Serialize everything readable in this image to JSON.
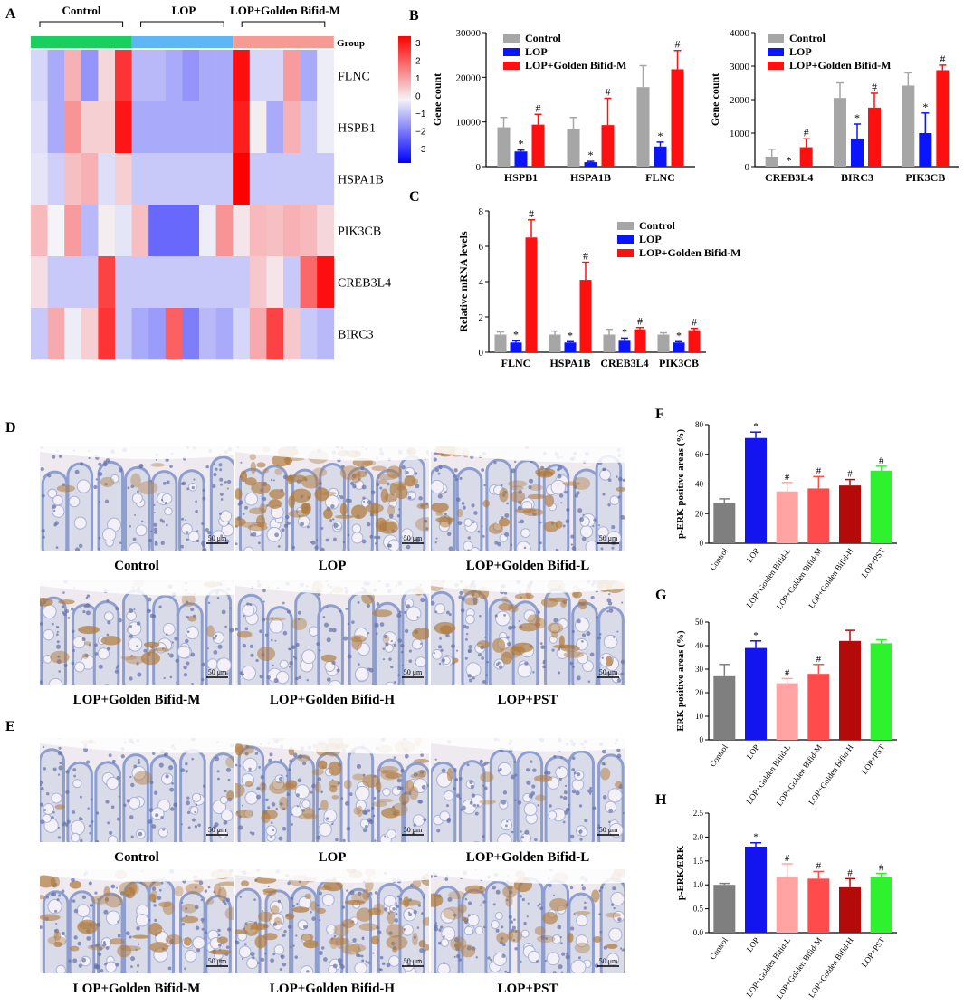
{
  "palette": {
    "control": "#a6a6a6",
    "lop": "#0a14ff",
    "golden_m": "#ff1010",
    "group_control": "#19cf5d",
    "group_lop": "#5fb6f5",
    "group_golden": "#f59b93",
    "f_bars": [
      "#7f7f7f",
      "#1414f0",
      "#ffa3a3",
      "#ff4b4b",
      "#b40a0a",
      "#2ef22e"
    ],
    "stain_blue": "#8e9ecf",
    "stain_brown": "#b07a3c"
  },
  "panels": {
    "A": "A",
    "B": "B",
    "C": "C",
    "D": "D",
    "E": "E",
    "F": "F",
    "G": "G",
    "H": "H"
  },
  "heatmap": {
    "group_headers": [
      "Control",
      "LOP",
      "LOP+Golden Bifid-M"
    ],
    "group_label": "Group",
    "rows": [
      "FLNC",
      "HSPB1",
      "HSPA1B",
      "PIK3CB",
      "CREB3L4",
      "BIRC3"
    ],
    "columns_per_group": 6,
    "scale_ticks": [
      "3",
      "2",
      "1",
      "0",
      "−1",
      "−2",
      "−3"
    ],
    "scale_range": [
      -3,
      3
    ],
    "values": [
      [
        -0.4,
        -1.0,
        0.9,
        -1.3,
        0.4,
        2.6,
        -0.8,
        -0.8,
        -1.0,
        -1.3,
        -1.0,
        -1.0,
        3.1,
        -0.4,
        -0.4,
        1.2,
        -1.0,
        -0.1
      ],
      [
        -0.3,
        -1.0,
        1.3,
        0.5,
        0.5,
        3.0,
        -1.0,
        -1.0,
        -1.0,
        -1.0,
        -1.0,
        -1.0,
        2.9,
        0.1,
        -1.0,
        0.9,
        -0.6,
        -0.1
      ],
      [
        -0.2,
        -0.5,
        0.7,
        0.9,
        -0.3,
        0.5,
        -0.6,
        -0.6,
        -0.6,
        -0.6,
        -0.6,
        -0.6,
        3.3,
        -0.6,
        -0.6,
        -0.6,
        -0.6,
        -0.6
      ],
      [
        0.8,
        0.0,
        1.2,
        -0.8,
        0.1,
        -0.2,
        0.7,
        -1.9,
        -1.9,
        -1.9,
        -0.1,
        1.3,
        0.2,
        0.8,
        0.7,
        0.9,
        0.8,
        0.4
      ],
      [
        0.3,
        -0.6,
        -0.6,
        -0.6,
        2.4,
        -0.6,
        -0.6,
        -0.6,
        -0.6,
        -0.6,
        -0.6,
        -0.6,
        -0.6,
        0.6,
        0.2,
        -0.6,
        1.9,
        3.1
      ],
      [
        -0.6,
        1.0,
        -0.1,
        0.5,
        2.6,
        -0.6,
        -1.0,
        -1.2,
        2.0,
        -1.6,
        -0.8,
        -1.0,
        -0.4,
        1.0,
        2.4,
        0.6,
        -0.6,
        -0.8
      ]
    ]
  },
  "photos": {
    "scale_bar": "50 μm",
    "D_labels": [
      "Control",
      "LOP",
      "LOP+Golden Bifid-L",
      "LOP+Golden Bifid-M",
      "LOP+Golden Bifid-H",
      "LOP+PST"
    ],
    "D_brown_intensity": [
      0.05,
      0.75,
      0.3,
      0.2,
      0.15,
      0.45
    ],
    "E_labels": [
      "Control",
      "LOP",
      "LOP+Golden Bifid-L",
      "LOP+Golden Bifid-M",
      "LOP+Golden Bifid-H",
      "LOP+PST"
    ],
    "E_brown_intensity": [
      0.05,
      0.6,
      0.08,
      0.5,
      0.6,
      0.35
    ]
  },
  "chart_data": [
    {
      "panel": "B-left",
      "type": "bar",
      "ylabel": "Gene count",
      "categories": [
        "HSPB1",
        "HSPA1B",
        "FLNC"
      ],
      "ylim": [
        0,
        30000
      ],
      "yticks": [
        0,
        10000,
        20000,
        30000
      ],
      "legend": "top-left",
      "series": [
        {
          "name": "Control",
          "values": [
            8800,
            8500,
            17800
          ],
          "errors": [
            2200,
            2500,
            4800
          ],
          "marks": [
            "",
            "",
            ""
          ]
        },
        {
          "name": "LOP",
          "values": [
            3400,
            1000,
            4500
          ],
          "errors": [
            300,
            200,
            1000
          ],
          "marks": [
            "*",
            "*",
            "*"
          ]
        },
        {
          "name": "LOP+Golden Bifid-M",
          "values": [
            9400,
            9300,
            21800
          ],
          "errors": [
            2300,
            6000,
            4200
          ],
          "marks": [
            "#",
            "#",
            "#"
          ]
        }
      ]
    },
    {
      "panel": "B-right",
      "type": "bar",
      "ylabel": "Gene count",
      "categories": [
        "CREB3L4",
        "BIRC3",
        "PIK3CB"
      ],
      "ylim": [
        0,
        4000
      ],
      "yticks": [
        0,
        1000,
        2000,
        3000,
        4000
      ],
      "legend": "top-left",
      "series": [
        {
          "name": "Control",
          "values": [
            300,
            2050,
            2420
          ],
          "errors": [
            220,
            450,
            380
          ],
          "marks": [
            "",
            "",
            ""
          ]
        },
        {
          "name": "LOP",
          "values": [
            0,
            840,
            1000
          ],
          "errors": [
            0,
            430,
            600
          ],
          "marks": [
            "*",
            "*",
            "*"
          ]
        },
        {
          "name": "LOP+Golden Bifid-M",
          "values": [
            580,
            1760,
            2880
          ],
          "errors": [
            250,
            430,
            150
          ],
          "marks": [
            "#",
            "#",
            "#"
          ]
        }
      ]
    },
    {
      "panel": "C",
      "type": "bar",
      "ylabel": "Relative mRNA levels",
      "categories": [
        "FLNC",
        "HSPA1B",
        "CREB3L4",
        "PIK3CB"
      ],
      "ylim": [
        0,
        8
      ],
      "yticks": [
        0,
        2,
        4,
        6,
        8
      ],
      "legend": "top-right",
      "series": [
        {
          "name": "Control",
          "values": [
            1.0,
            1.0,
            1.0,
            1.0
          ],
          "errors": [
            0.15,
            0.2,
            0.3,
            0.1
          ],
          "marks": [
            "",
            "",
            "",
            ""
          ]
        },
        {
          "name": "LOP",
          "values": [
            0.55,
            0.55,
            0.65,
            0.55
          ],
          "errors": [
            0.1,
            0.05,
            0.15,
            0.05
          ],
          "marks": [
            "*",
            "*",
            "*",
            "*"
          ]
        },
        {
          "name": "LOP+Golden Bifid-M",
          "values": [
            6.5,
            4.1,
            1.3,
            1.25
          ],
          "errors": [
            1.0,
            1.0,
            0.1,
            0.1
          ],
          "marks": [
            "#",
            "#",
            "#",
            "#"
          ]
        }
      ]
    },
    {
      "panel": "F",
      "type": "bar",
      "ylabel": "p-ERK positive areas (%)",
      "categories": [
        "Control",
        "LOP",
        "LOP+Golden Bifid-L",
        "LOP+Golden Bifid-M",
        "LOP+Golden Bifid-H",
        "LOP+PST"
      ],
      "ylim": [
        0,
        80
      ],
      "yticks": [
        0,
        20,
        40,
        60,
        80
      ],
      "values": [
        27,
        71,
        35,
        37,
        39,
        49
      ],
      "errors": [
        3,
        4,
        6,
        8,
        4,
        3
      ],
      "marks": [
        "",
        "*",
        "#",
        "#",
        "#",
        "#"
      ]
    },
    {
      "panel": "G",
      "type": "bar",
      "ylabel": "ERK positive areas (%)",
      "categories": [
        "Control",
        "LOP",
        "LOP+Golden Bifid-L",
        "LOP+Golden Bifid-M",
        "LOP+Golden Bifid-H",
        "LOP+PST"
      ],
      "ylim": [
        0,
        50
      ],
      "yticks": [
        0,
        10,
        20,
        30,
        40,
        50
      ],
      "values": [
        27,
        39,
        24,
        28,
        42,
        41
      ],
      "errors": [
        5,
        3,
        2,
        4,
        4.5,
        1.5
      ],
      "marks": [
        "",
        "*",
        "#",
        "#",
        "",
        ""
      ]
    },
    {
      "panel": "H",
      "type": "bar",
      "ylabel": "p-ERK/ERK",
      "categories": [
        "Control",
        "LOP",
        "LOP+Golden Bifid-L",
        "LOP+Golden Bifid-M",
        "LOP+Golden Bifid-H",
        "LOP+PST"
      ],
      "ylim": [
        0,
        2.5
      ],
      "yticks": [
        "0.0",
        "0.5",
        "1.0",
        "1.5",
        "2.0",
        "2.5"
      ],
      "values": [
        1.0,
        1.8,
        1.17,
        1.13,
        0.95,
        1.17
      ],
      "errors": [
        0.03,
        0.08,
        0.27,
        0.15,
        0.18,
        0.07
      ],
      "marks": [
        "",
        "*",
        "#",
        "#",
        "#",
        "#"
      ]
    }
  ]
}
